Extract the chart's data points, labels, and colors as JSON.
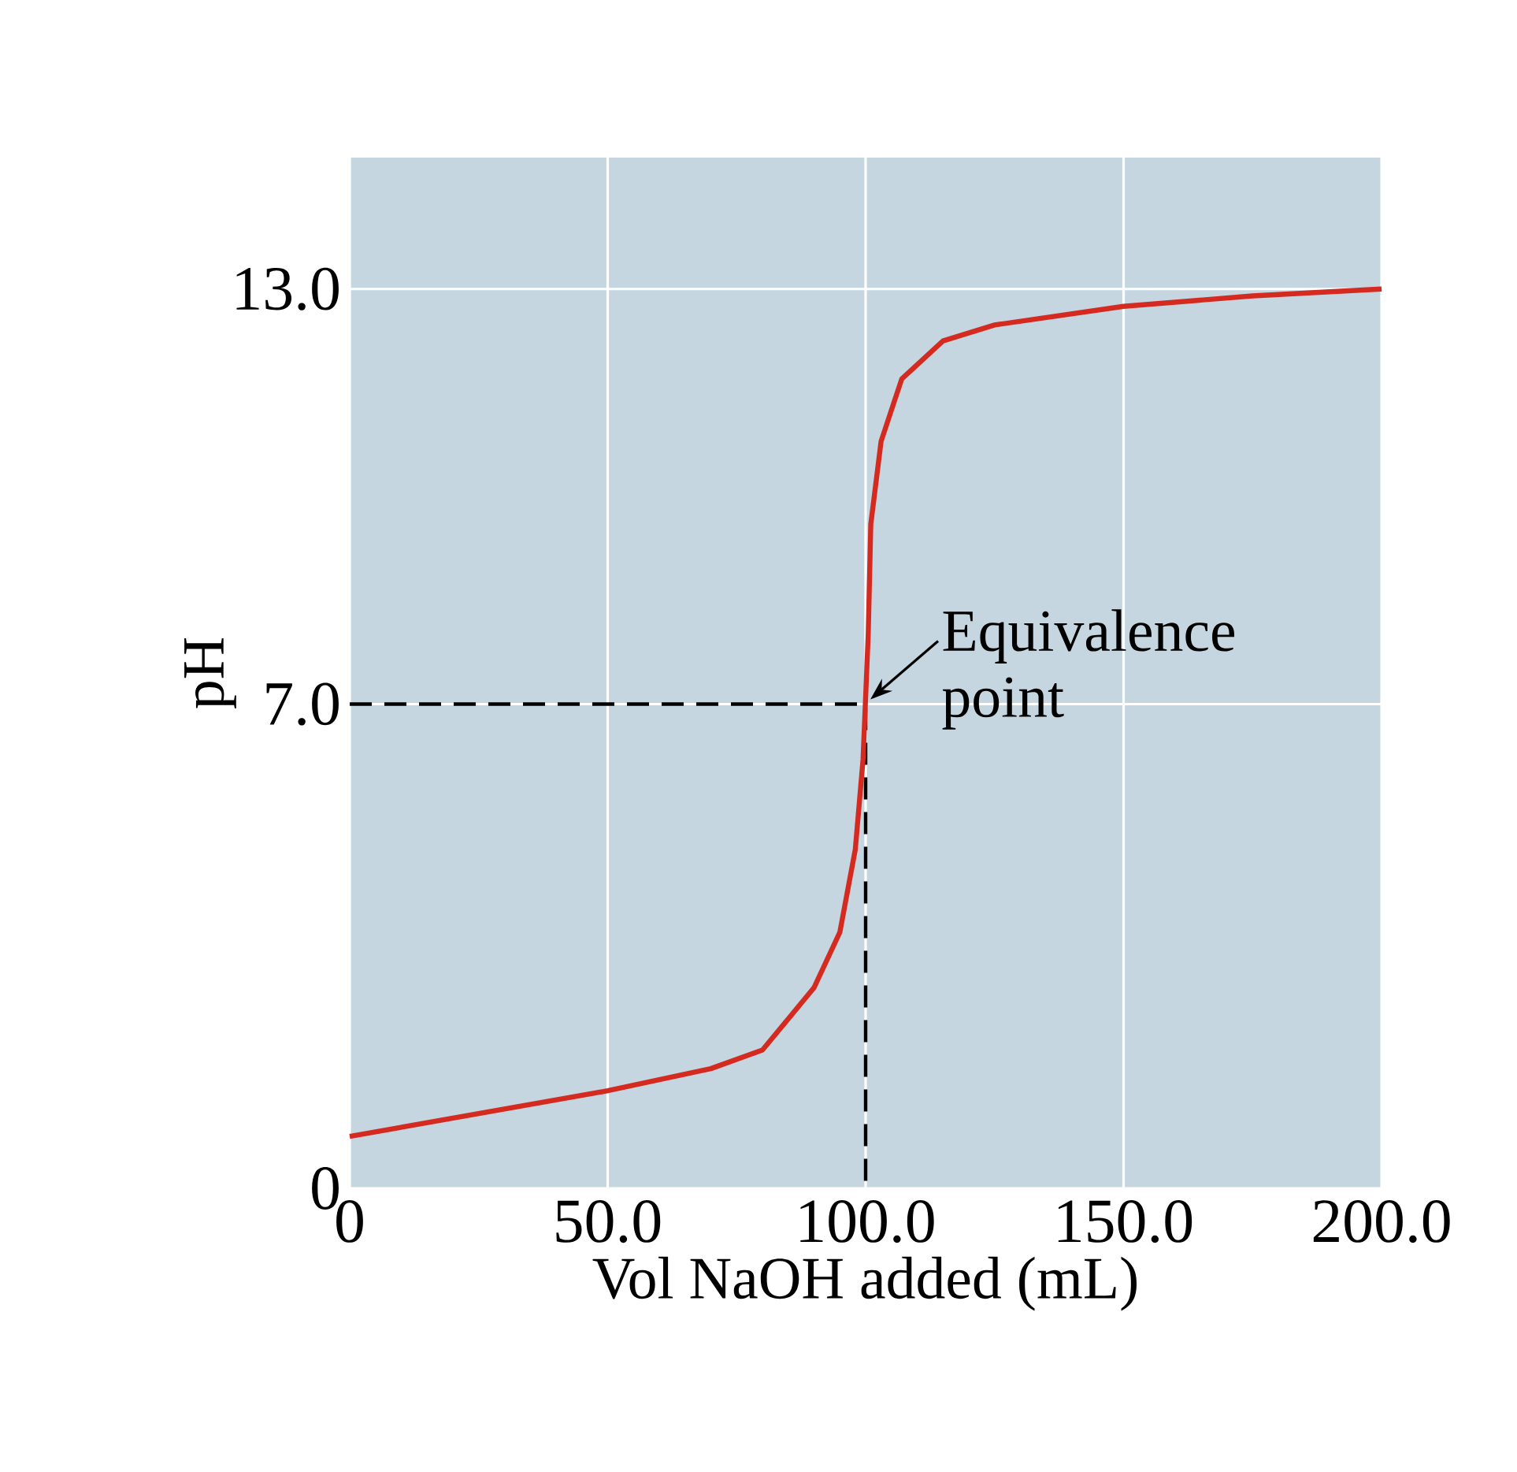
{
  "chart_data": {
    "type": "line",
    "xlabel": "Vol NaOH added (mL)",
    "ylabel": "pH",
    "xlim": [
      0,
      200
    ],
    "ylim": [
      0,
      14.9
    ],
    "xticks": [
      0,
      {
        "value": 50,
        "label": "50.0"
      },
      {
        "value": 100,
        "label": "100.0"
      },
      {
        "value": 150,
        "label": "150.0"
      },
      {
        "value": 200,
        "label": "200.0"
      }
    ],
    "yticks": [
      0,
      {
        "value": 7,
        "label": "7.0"
      },
      {
        "value": 13,
        "label": "13.0"
      }
    ],
    "grid": true,
    "annotations": [
      {
        "text": "Equivalence point",
        "x": 100,
        "y": 7
      }
    ],
    "series": [
      {
        "color": "#000000",
        "line_style": "dashed",
        "x": [
          0,
          100,
          100
        ],
        "values": [
          7,
          7,
          0
        ]
      },
      {
        "color": "#d42a20",
        "line_style": "solid",
        "x": [
          0,
          50,
          70,
          80,
          90,
          95,
          98,
          99.5,
          100,
          100.5,
          101,
          103,
          107,
          115,
          125,
          150,
          175,
          200
        ],
        "values": [
          0.75,
          1.41,
          1.73,
          2.0,
          2.9,
          3.7,
          4.9,
          6.2,
          7.1,
          8.0,
          9.6,
          10.8,
          11.7,
          12.25,
          12.48,
          12.75,
          12.9,
          13.0
        ]
      }
    ]
  }
}
